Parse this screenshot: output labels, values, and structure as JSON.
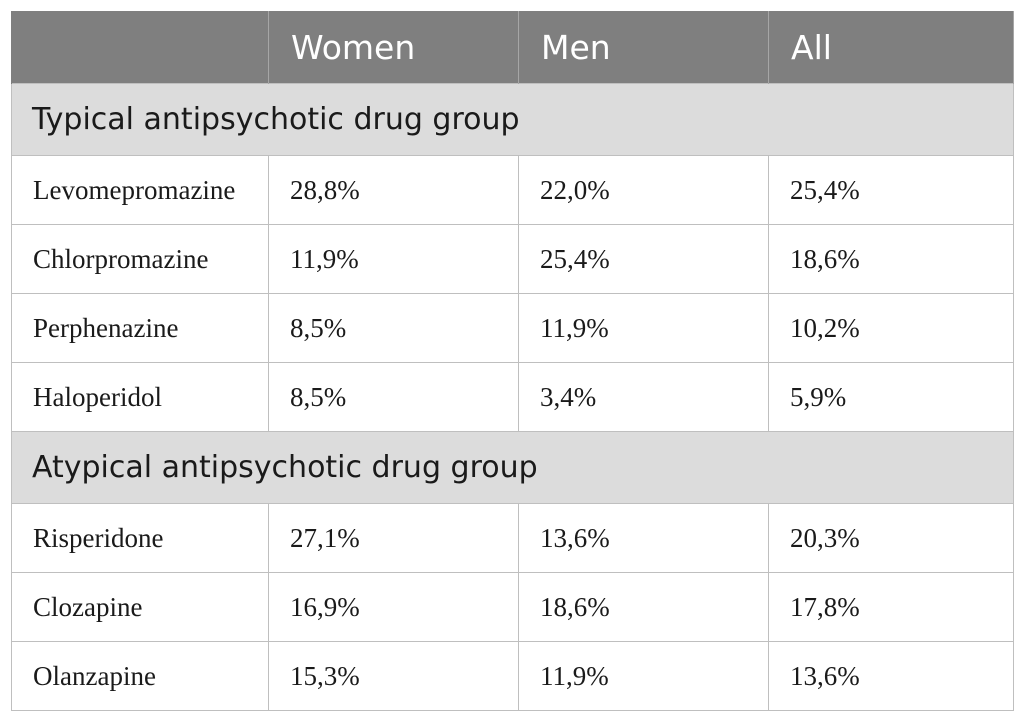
{
  "header": {
    "columns": [
      "",
      "Women",
      "Men",
      "All"
    ]
  },
  "groups": [
    {
      "title": "Typical antipsychotic drug group",
      "rows": [
        {
          "drug": "Levomepromazine",
          "women": "28,8%",
          "men": "22,0%",
          "all": "25,4%"
        },
        {
          "drug": "Chlorpromazine",
          "women": "11,9%",
          "men": "25,4%",
          "all": "18,6%"
        },
        {
          "drug": "Perphenazine",
          "women": "8,5%",
          "men": "11,9%",
          "all": "10,2%"
        },
        {
          "drug": "Haloperidol",
          "women": "8,5%",
          "men": "3,4%",
          "all": "5,9%"
        }
      ]
    },
    {
      "title": "Atypical antipsychotic drug group",
      "rows": [
        {
          "drug": "Risperidone",
          "women": "27,1%",
          "men": "13,6%",
          "all": "20,3%"
        },
        {
          "drug": "Clozapine",
          "women": "16,9%",
          "men": "18,6%",
          "all": "17,8%"
        },
        {
          "drug": "Olanzapine",
          "women": "15,3%",
          "men": "11,9%",
          "all": "13,6%"
        }
      ]
    }
  ],
  "colors": {
    "header_bg": "#7f7f7f",
    "group_bg": "#dcdcdc",
    "border": "#bfbfbf"
  }
}
